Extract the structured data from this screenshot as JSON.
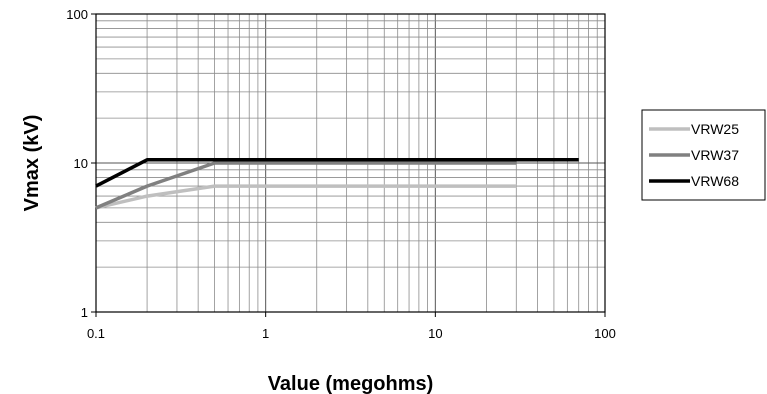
{
  "chart_data": {
    "type": "line",
    "xscale": "log",
    "yscale": "log",
    "xlim": [
      0.1,
      100
    ],
    "ylim": [
      1,
      100
    ],
    "grid": true,
    "legend_position": "right",
    "xlabel": "Value (megohms)",
    "ylabel": "Vmax (kV)",
    "x_ticks": [
      0.1,
      1,
      10,
      100
    ],
    "x_tick_labels": [
      "0.1",
      "1",
      "10",
      "100"
    ],
    "y_ticks": [
      1,
      10,
      100
    ],
    "y_tick_labels": [
      "1",
      "10",
      "100"
    ],
    "series": [
      {
        "name": "VRW25",
        "color": "#BFBFBF",
        "points": [
          [
            0.1,
            5.0
          ],
          [
            0.2,
            6.0
          ],
          [
            0.5,
            7.0
          ],
          [
            30,
            7.0
          ]
        ]
      },
      {
        "name": "VRW37",
        "color": "#808080",
        "points": [
          [
            0.1,
            5.0
          ],
          [
            0.2,
            7.0
          ],
          [
            0.5,
            10.0
          ],
          [
            30,
            10.0
          ]
        ]
      },
      {
        "name": "VRW68",
        "color": "#000000",
        "points": [
          [
            0.1,
            7.0
          ],
          [
            0.2,
            10.5
          ],
          [
            70,
            10.5
          ]
        ]
      }
    ]
  }
}
